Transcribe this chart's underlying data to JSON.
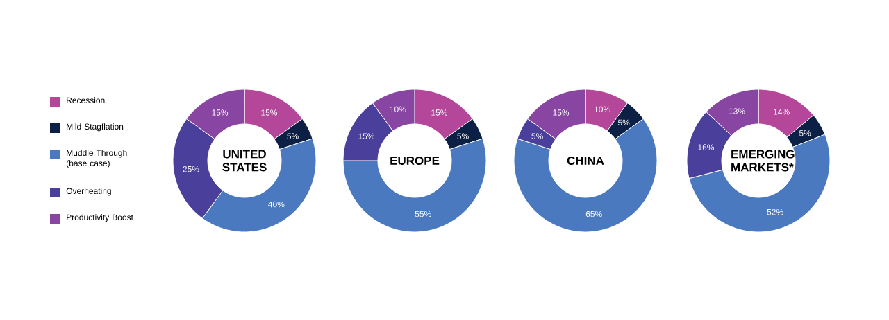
{
  "chart_data": [
    {
      "type": "donut",
      "title": "UNITED STATES",
      "categories": [
        "Recession",
        "Mild Stagflation",
        "Muddle Through (base case)",
        "Overheating",
        "Productivity Boost"
      ],
      "values": [
        15,
        5,
        40,
        25,
        15
      ],
      "value_labels": [
        "15%",
        "5%",
        "40%",
        "25%",
        "15%"
      ],
      "colors": [
        "#b5479b",
        "#0c1f44",
        "#4b79c0",
        "#4a3f9b",
        "#8845a2"
      ],
      "legend": "left"
    },
    {
      "type": "donut",
      "title": "EUROPE",
      "categories": [
        null,
        null,
        null,
        null,
        null
      ],
      "values": [
        15,
        5,
        55,
        15,
        10
      ],
      "value_labels": [
        "15%",
        "5%",
        "55%",
        "15%",
        "10%"
      ],
      "colors": [
        "#b5479b",
        "#0c1f44",
        "#4b79c0",
        "#4a3f9b",
        "#8845a2"
      ]
    },
    {
      "type": "donut",
      "title": "CHINA",
      "categories": [
        null,
        null,
        null,
        null,
        null
      ],
      "values": [
        10,
        5,
        65,
        5,
        15
      ],
      "value_labels": [
        "10%",
        "5%",
        "65%",
        "5%",
        "15%"
      ],
      "colors": [
        "#b5479b",
        "#0c1f44",
        "#4b79c0",
        "#4a3f9b",
        "#8845a2"
      ]
    },
    {
      "type": "donut",
      "title": "EMERGING MARKETS*",
      "categories": [
        null,
        null,
        null,
        null,
        null
      ],
      "values": [
        14,
        5,
        52,
        16,
        13
      ],
      "value_labels": [
        "14%",
        "5%",
        "52%",
        "16%",
        "13%"
      ],
      "colors": [
        "#b5479b",
        "#0c1f44",
        "#4b79c0",
        "#4a3f9b",
        "#8845a2"
      ]
    }
  ]
}
